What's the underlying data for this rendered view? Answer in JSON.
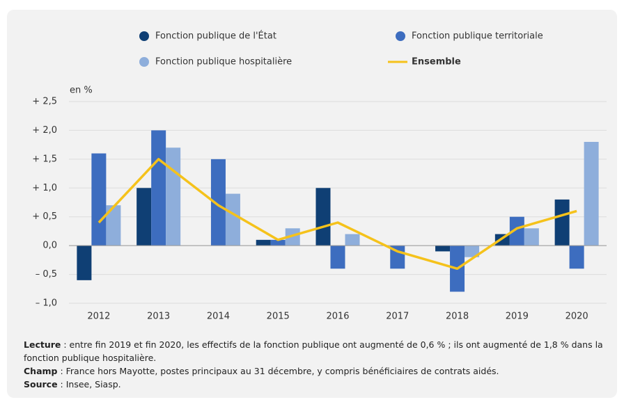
{
  "chart_data": {
    "type": "bar",
    "y_label": "en %",
    "categories": [
      "2012",
      "2013",
      "2014",
      "2015",
      "2016",
      "2017",
      "2018",
      "2019",
      "2020"
    ],
    "series": [
      {
        "name": "Fonction publique de l'État",
        "color": "#0f3f74",
        "values": [
          -0.6,
          1.0,
          null,
          0.1,
          1.0,
          null,
          -0.1,
          0.2,
          0.8
        ]
      },
      {
        "name": "Fonction publique territoriale",
        "color": "#3d6dbf",
        "values": [
          1.6,
          2.0,
          1.5,
          0.1,
          -0.4,
          -0.4,
          -0.8,
          0.5,
          -0.4
        ]
      },
      {
        "name": "Fonction publique hospitalière",
        "color": "#8eaedb",
        "values": [
          0.7,
          1.7,
          0.9,
          0.3,
          0.2,
          null,
          -0.2,
          0.3,
          1.8
        ]
      },
      {
        "name": "Ensemble",
        "color": "#f5c21b",
        "type": "line",
        "values": [
          0.4,
          1.5,
          0.7,
          0.1,
          0.4,
          -0.1,
          -0.4,
          0.3,
          0.6
        ]
      }
    ],
    "ylim": [
      -1.0,
      2.5
    ],
    "yticks": [
      {
        "value": -1.0,
        "label": "– 1,0"
      },
      {
        "value": -0.5,
        "label": "– 0,5"
      },
      {
        "value": 0,
        "label": "0,0"
      },
      {
        "value": 0.5,
        "label": "+ 0,5"
      },
      {
        "value": 1.0,
        "label": "+ 1,0"
      },
      {
        "value": 1.5,
        "label": "+ 1,5"
      },
      {
        "value": 2.0,
        "label": "+ 2,0"
      },
      {
        "value": 2.5,
        "label": "+ 2,5"
      }
    ],
    "grid": true,
    "notes": [
      {
        "label": "Lecture",
        "text": " : entre fin 2019 et fin 2020, les effectifs de la fonction publique ont augmenté de 0,6 % ; ils ont augmenté de 1,8 % dans la fonction publique hospitalière."
      },
      {
        "label": "Champ",
        "text": " : France hors Mayotte, postes principaux au 31 décembre, y compris bénéficiaires de contrats aidés."
      },
      {
        "label": "Source",
        "text": " : Insee, Siasp."
      }
    ]
  }
}
